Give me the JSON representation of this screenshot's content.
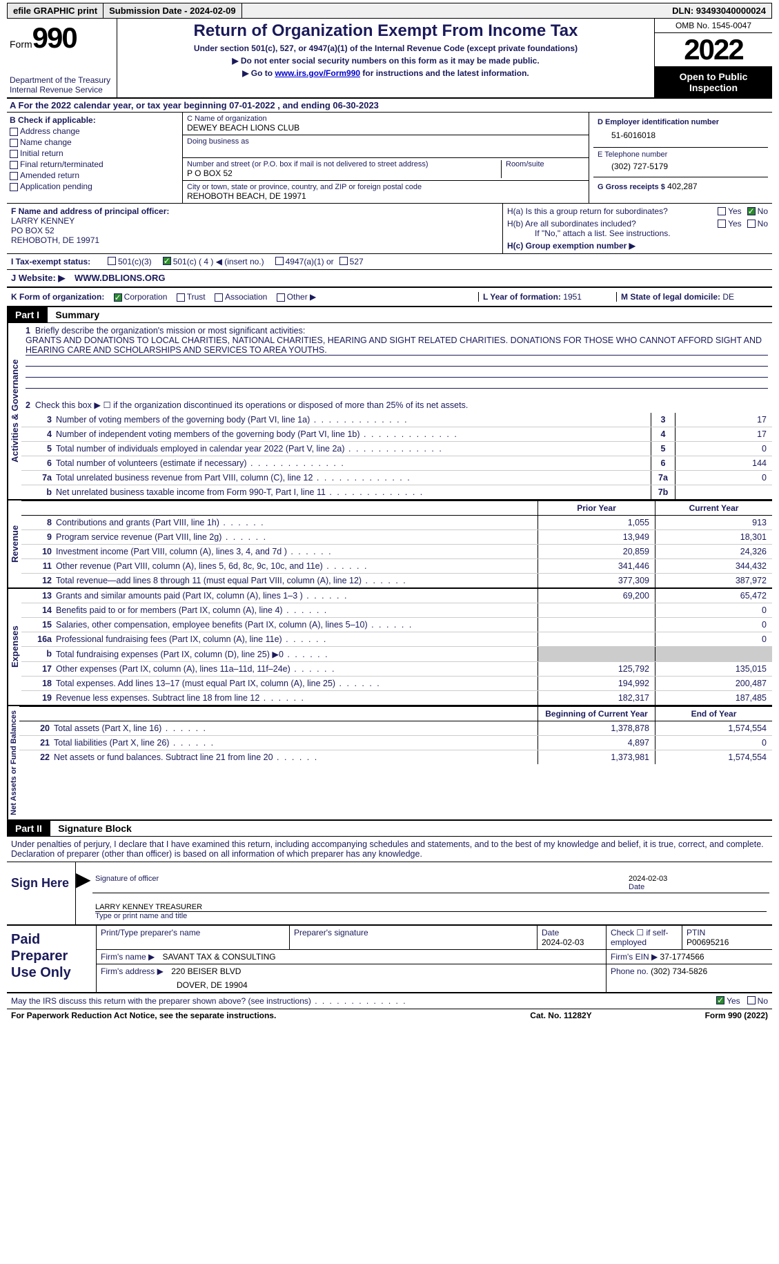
{
  "topbar": {
    "efile": "efile GRAPHIC print",
    "submission": "Submission Date - 2024-02-09",
    "dln": "DLN: 93493040000024"
  },
  "header": {
    "form_label": "Form",
    "form_number": "990",
    "dept": "Department of the Treasury",
    "irs": "Internal Revenue Service",
    "title": "Return of Organization Exempt From Income Tax",
    "subtitle": "Under section 501(c), 527, or 4947(a)(1) of the Internal Revenue Code (except private foundations)",
    "instr1": "▶ Do not enter social security numbers on this form as it may be made public.",
    "instr2_pre": "▶ Go to ",
    "instr2_link": "www.irs.gov/Form990",
    "instr2_post": " for instructions and the latest information.",
    "omb": "OMB No. 1545-0047",
    "year": "2022",
    "open": "Open to Public Inspection"
  },
  "rowA": "A For the 2022 calendar year, or tax year beginning 07-01-2022   , and ending 06-30-2023",
  "boxB": {
    "label": "B Check if applicable:",
    "items": [
      "Address change",
      "Name change",
      "Initial return",
      "Final return/terminated",
      "Amended return",
      "Application pending"
    ]
  },
  "boxC": {
    "name_label": "C Name of organization",
    "name": "DEWEY BEACH LIONS CLUB",
    "dba_label": "Doing business as",
    "street_label": "Number and street (or P.O. box if mail is not delivered to street address)",
    "street": "P O BOX 52",
    "room_label": "Room/suite",
    "city_label": "City or town, state or province, country, and ZIP or foreign postal code",
    "city": "REHOBOTH BEACH, DE  19971"
  },
  "boxD": {
    "ein_label": "D Employer identification number",
    "ein": "51-6016018",
    "phone_label": "E Telephone number",
    "phone": "(302) 727-5179",
    "gross_label": "G Gross receipts $",
    "gross": "402,287"
  },
  "boxF": {
    "label": "F Name and address of principal officer:",
    "l1": "LARRY KENNEY",
    "l2": "PO BOX 52",
    "l3": "REHOBOTH, DE  19971"
  },
  "boxH": {
    "ha": "H(a)  Is this a group return for subordinates?",
    "hb": "H(b)  Are all subordinates included?",
    "hb_note": "If \"No,\" attach a list. See instructions.",
    "hc": "H(c)  Group exemption number ▶"
  },
  "status": {
    "label": "I  Tax-exempt status:",
    "s1": "501(c)(3)",
    "s2": "501(c) ( 4 ) ◀ (insert no.)",
    "s3": "4947(a)(1) or",
    "s4": "527"
  },
  "website": {
    "label": "J  Website: ▶",
    "val": "WWW.DBLIONS.ORG"
  },
  "korg": {
    "label": "K Form of organization:",
    "opts": [
      "Corporation",
      "Trust",
      "Association",
      "Other ▶"
    ],
    "l_label": "L Year of formation:",
    "l_val": "1951",
    "m_label": "M State of legal domicile:",
    "m_val": "DE"
  },
  "part1": {
    "header": "Part I",
    "title": "Summary",
    "q1_label": "Briefly describe the organization's mission or most significant activities:",
    "q1_text": "GRANTS AND DONATIONS TO LOCAL CHARITIES, NATIONAL CHARITIES, HEARING AND SIGHT RELATED CHARITIES. DONATIONS FOR THOSE WHO CANNOT AFFORD SIGHT AND HEARING CARE AND SCHOLARSHIPS AND SERVICES TO AREA YOUTHS.",
    "q2": "Check this box ▶ ☐ if the organization discontinued its operations or disposed of more than 25% of its net assets.",
    "lines_act": [
      {
        "n": "3",
        "t": "Number of voting members of the governing body (Part VI, line 1a)",
        "k": "3",
        "v": "17"
      },
      {
        "n": "4",
        "t": "Number of independent voting members of the governing body (Part VI, line 1b)",
        "k": "4",
        "v": "17"
      },
      {
        "n": "5",
        "t": "Total number of individuals employed in calendar year 2022 (Part V, line 2a)",
        "k": "5",
        "v": "0"
      },
      {
        "n": "6",
        "t": "Total number of volunteers (estimate if necessary)",
        "k": "6",
        "v": "144"
      },
      {
        "n": "7a",
        "t": "Total unrelated business revenue from Part VIII, column (C), line 12",
        "k": "7a",
        "v": "0"
      },
      {
        "n": "b",
        "t": "Net unrelated business taxable income from Form 990-T, Part I, line 11",
        "k": "7b",
        "v": ""
      }
    ],
    "prior_label": "Prior Year",
    "curr_label": "Current Year",
    "lines_rev": [
      {
        "n": "8",
        "t": "Contributions and grants (Part VIII, line 1h)",
        "p": "1,055",
        "c": "913"
      },
      {
        "n": "9",
        "t": "Program service revenue (Part VIII, line 2g)",
        "p": "13,949",
        "c": "18,301"
      },
      {
        "n": "10",
        "t": "Investment income (Part VIII, column (A), lines 3, 4, and 7d )",
        "p": "20,859",
        "c": "24,326"
      },
      {
        "n": "11",
        "t": "Other revenue (Part VIII, column (A), lines 5, 6d, 8c, 9c, 10c, and 11e)",
        "p": "341,446",
        "c": "344,432"
      },
      {
        "n": "12",
        "t": "Total revenue—add lines 8 through 11 (must equal Part VIII, column (A), line 12)",
        "p": "377,309",
        "c": "387,972"
      }
    ],
    "lines_exp": [
      {
        "n": "13",
        "t": "Grants and similar amounts paid (Part IX, column (A), lines 1–3 )",
        "p": "69,200",
        "c": "65,472"
      },
      {
        "n": "14",
        "t": "Benefits paid to or for members (Part IX, column (A), line 4)",
        "p": "",
        "c": "0"
      },
      {
        "n": "15",
        "t": "Salaries, other compensation, employee benefits (Part IX, column (A), lines 5–10)",
        "p": "",
        "c": "0"
      },
      {
        "n": "16a",
        "t": "Professional fundraising fees (Part IX, column (A), line 11e)",
        "p": "",
        "c": "0"
      },
      {
        "n": "b",
        "t": "Total fundraising expenses (Part IX, column (D), line 25) ▶0",
        "p": "grey",
        "c": "grey"
      },
      {
        "n": "17",
        "t": "Other expenses (Part IX, column (A), lines 11a–11d, 11f–24e)",
        "p": "125,792",
        "c": "135,015"
      },
      {
        "n": "18",
        "t": "Total expenses. Add lines 13–17 (must equal Part IX, column (A), line 25)",
        "p": "194,992",
        "c": "200,487"
      },
      {
        "n": "19",
        "t": "Revenue less expenses. Subtract line 18 from line 12",
        "p": "182,317",
        "c": "187,485"
      }
    ],
    "boy_label": "Beginning of Current Year",
    "eoy_label": "End of Year",
    "lines_net": [
      {
        "n": "20",
        "t": "Total assets (Part X, line 16)",
        "p": "1,378,878",
        "c": "1,574,554"
      },
      {
        "n": "21",
        "t": "Total liabilities (Part X, line 26)",
        "p": "4,897",
        "c": "0"
      },
      {
        "n": "22",
        "t": "Net assets or fund balances. Subtract line 21 from line 20",
        "p": "1,373,981",
        "c": "1,574,554"
      }
    ],
    "vert_act": "Activities & Governance",
    "vert_rev": "Revenue",
    "vert_exp": "Expenses",
    "vert_net": "Net Assets or Fund Balances"
  },
  "part2": {
    "header": "Part II",
    "title": "Signature Block",
    "decl": "Under penalties of perjury, I declare that I have examined this return, including accompanying schedules and statements, and to the best of my knowledge and belief, it is true, correct, and complete. Declaration of preparer (other than officer) is based on all information of which preparer has any knowledge.",
    "sign_here": "Sign Here",
    "sig_officer": "Signature of officer",
    "sig_date": "2024-02-03",
    "date_label": "Date",
    "name_title": "LARRY KENNEY  TREASURER",
    "name_title_label": "Type or print name and title"
  },
  "prep": {
    "label": "Paid Preparer Use Only",
    "r1": {
      "c1": "Print/Type preparer's name",
      "c2": "Preparer's signature",
      "c3": "Date",
      "c3v": "2024-02-03",
      "c4": "Check ☐ if self-employed",
      "c5": "PTIN",
      "c5v": "P00695216"
    },
    "r2": {
      "c1": "Firm's name    ▶",
      "c1v": "SAVANT TAX & CONSULTING",
      "c2": "Firm's EIN ▶",
      "c2v": "37-1774566"
    },
    "r3": {
      "c1": "Firm's address ▶",
      "c1v": "220 BEISER BLVD",
      "c1v2": "DOVER, DE  19904",
      "c2": "Phone no.",
      "c2v": "(302) 734-5826"
    }
  },
  "footer": {
    "q": "May the IRS discuss this return with the preparer shown above? (see instructions)",
    "yes": "Yes",
    "no": "No",
    "pra": "For Paperwork Reduction Act Notice, see the separate instructions.",
    "cat": "Cat. No. 11282Y",
    "form": "Form 990 (2022)"
  }
}
